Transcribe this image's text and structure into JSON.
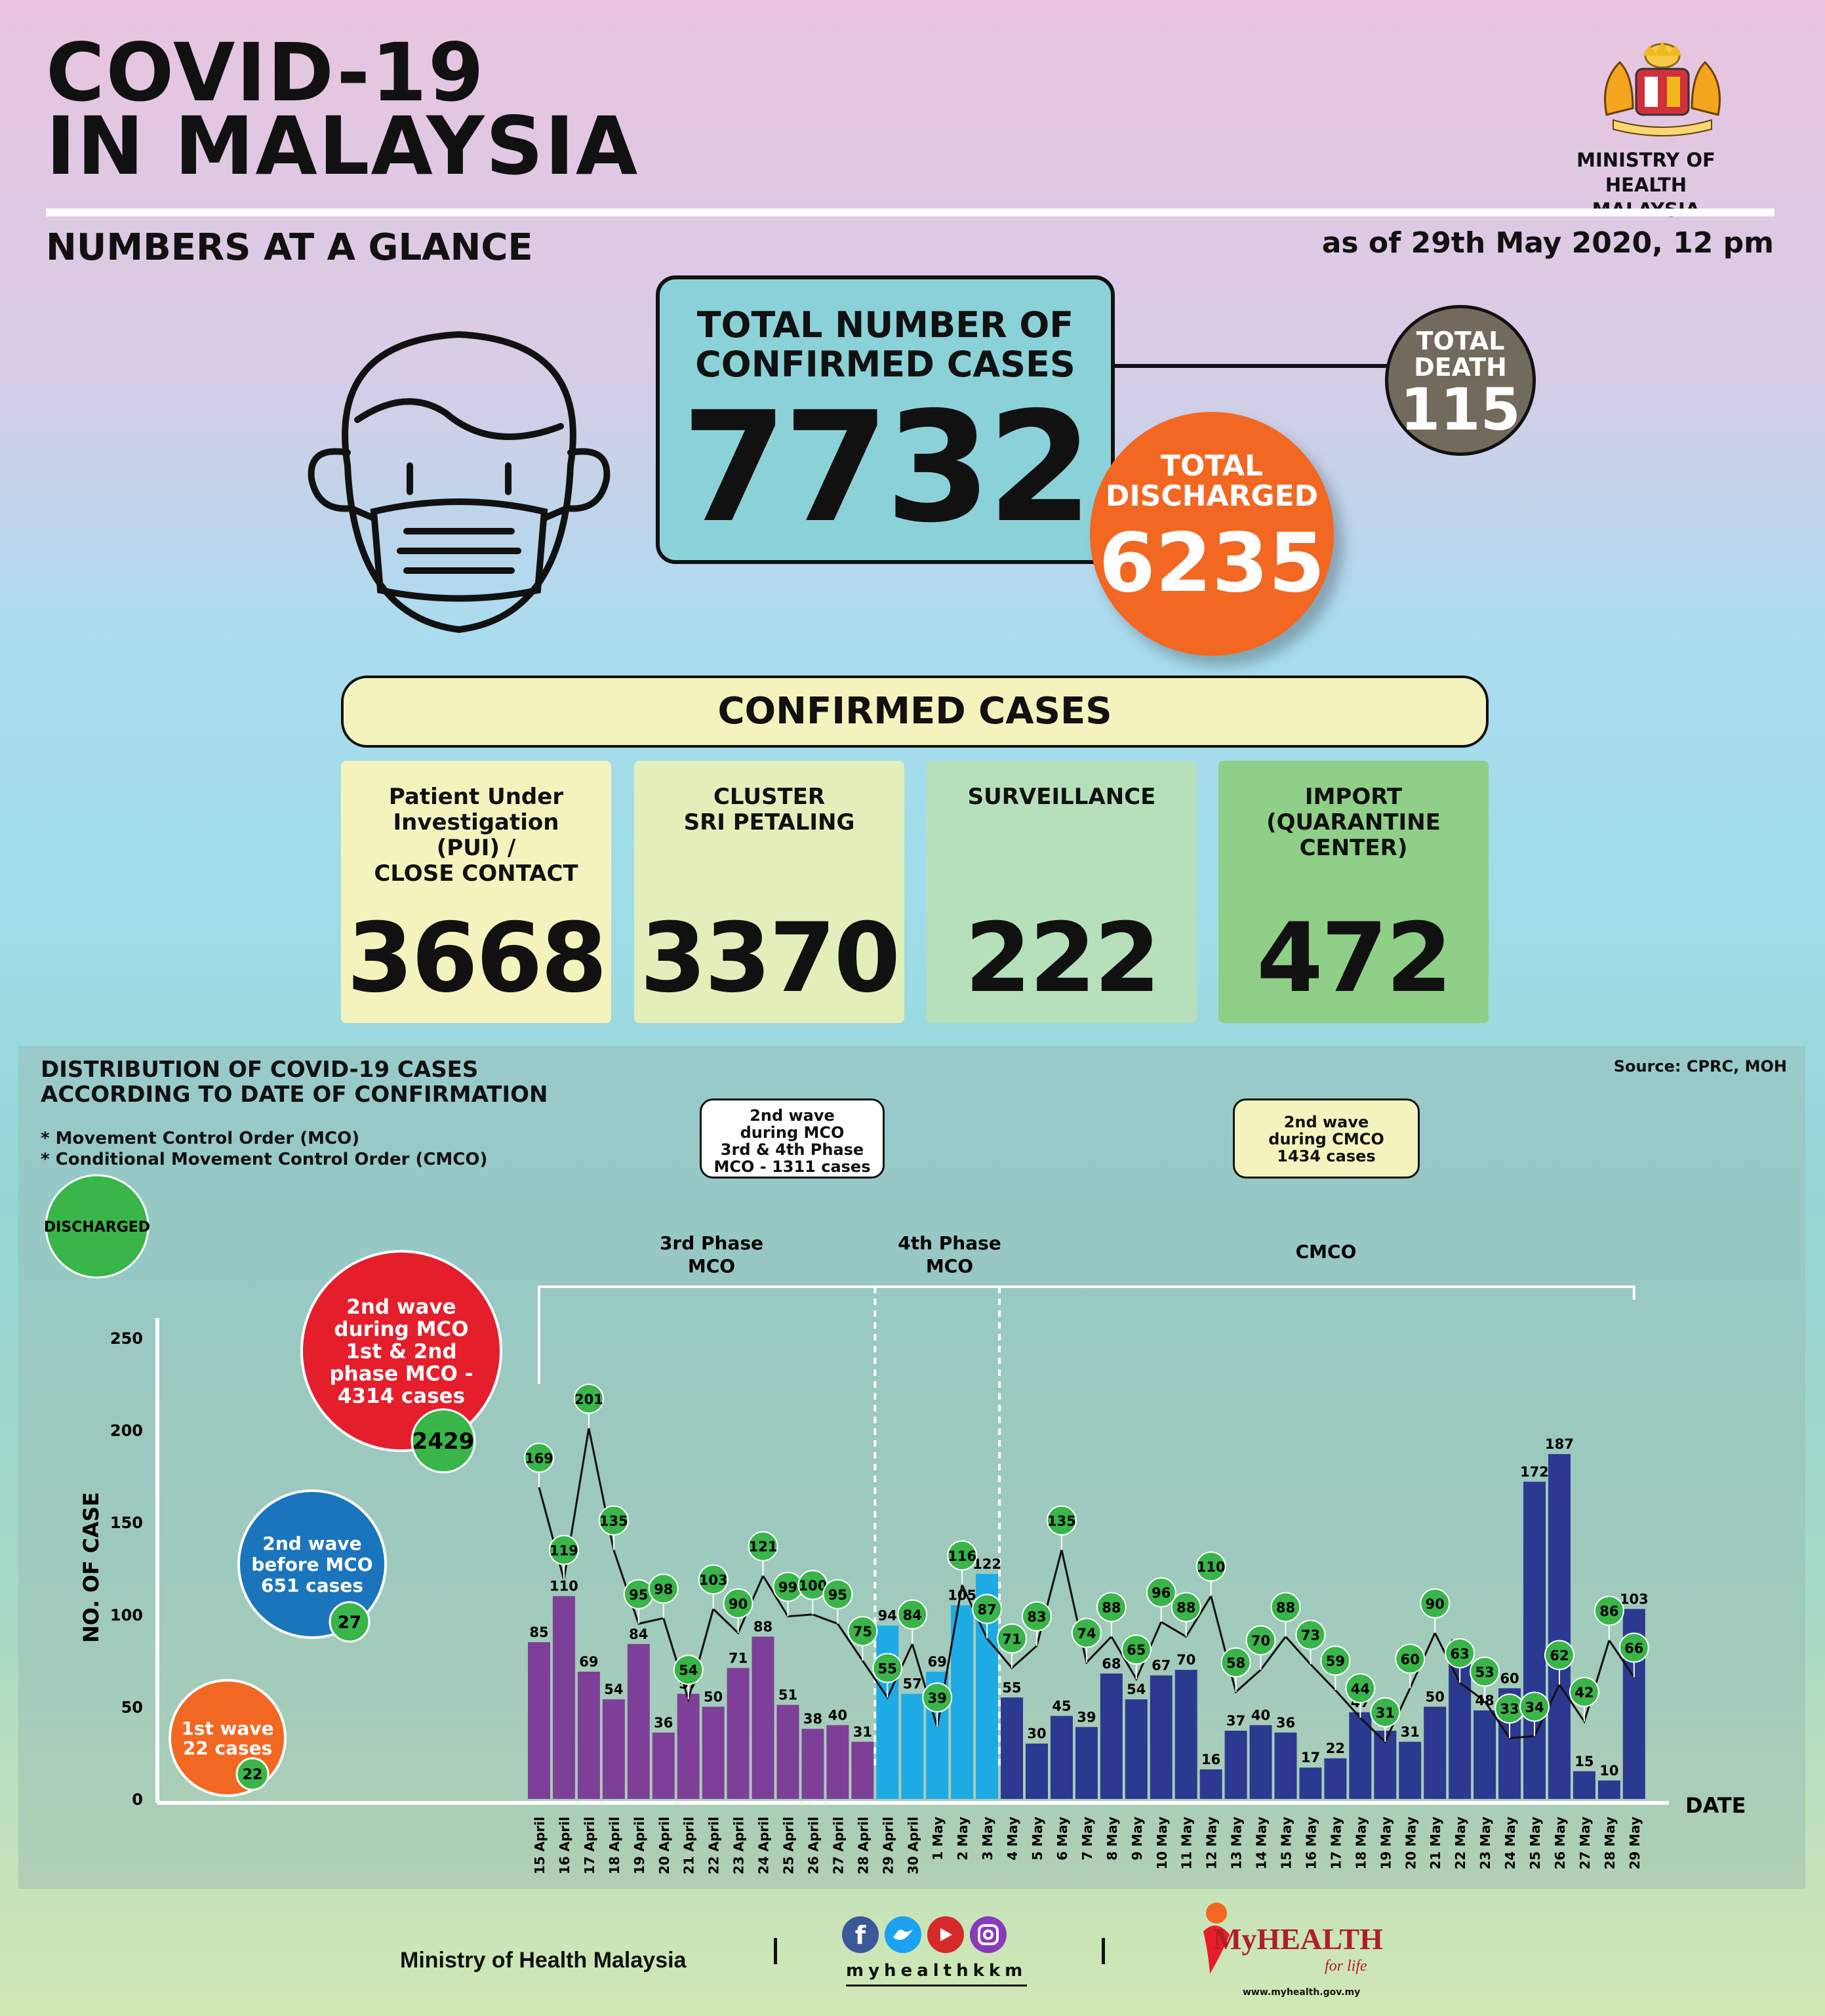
{
  "header": {
    "title_line1": "COVID-19",
    "title_line2": "IN MALAYSIA",
    "subtitle": "NUMBERS AT A GLANCE",
    "as_of": "as of 29th May 2020, 12 pm",
    "ministry_line1": "MINISTRY OF HEALTH",
    "ministry_line2": "MALAYSIA"
  },
  "totals": {
    "confirmed_label_1": "TOTAL NUMBER OF",
    "confirmed_label_2": "CONFIRMED CASES",
    "confirmed": "7732",
    "death_label_1": "TOTAL",
    "death_label_2": "DEATH",
    "death": "115",
    "discharged_label_1": "TOTAL",
    "discharged_label_2": "DISCHARGED",
    "discharged": "6235"
  },
  "confirmed_cases": {
    "header": "CONFIRMED CASES",
    "categories": [
      {
        "label": "Patient Under\nInvestigation\n(PUI) /\nCLOSE CONTACT",
        "value": "3668",
        "color": "#f5f3bd"
      },
      {
        "label": "CLUSTER\nSRI PETALING",
        "value": "3370",
        "color": "#e2efbb"
      },
      {
        "label": "SURVEILLANCE",
        "value": "222",
        "color": "#b6e0b9"
      },
      {
        "label": "IMPORT\n(QUARANTINE\nCENTER)",
        "value": "472",
        "color": "#8fcf87"
      }
    ]
  },
  "chart_section": {
    "title_1": "DISTRIBUTION OF COVID-19 CASES",
    "title_2": "ACCORDING TO DATE OF CONFIRMATION",
    "note_1": "* Movement Control Order (MCO)",
    "note_2": "* Conditional Movement Control Order (CMCO)",
    "source": "Source: CPRC, MOH",
    "discharged_legend": "DISCHARGED",
    "wave_mco34": [
      "2nd wave",
      "during MCO",
      "3rd & 4th Phase",
      "MCO - 1311 cases"
    ],
    "wave_cmco": [
      "2nd wave",
      "during CMCO",
      "1434 cases"
    ],
    "phase3": [
      "3rd Phase",
      "MCO"
    ],
    "phase4": [
      "4th Phase",
      "MCO"
    ],
    "cmco": "CMCO",
    "bubbles": [
      {
        "lines": [
          "2nd wave",
          "during MCO",
          "1st & 2nd",
          "phase MCO -",
          "4314 cases"
        ],
        "discharged": "2429",
        "color": "#e41e2b"
      },
      {
        "lines": [
          "2nd wave",
          "before MCO",
          "651 cases"
        ],
        "discharged": "27",
        "color": "#1b75bc"
      },
      {
        "lines": [
          "1st wave",
          "22 cases"
        ],
        "discharged": "22",
        "color": "#f26722"
      }
    ],
    "colors": {
      "phase3": "#7e3f98",
      "phase4": "#1eabe3",
      "cmco": "#2b3990",
      "discharged": "#39b54a"
    }
  },
  "chart_data": {
    "type": "bar",
    "ylabel": "NO. OF CASE",
    "xlabel": "DATE",
    "ylim": [
      0,
      250
    ],
    "yticks": [
      0,
      50,
      100,
      150,
      200,
      250
    ],
    "categories": [
      "15 April",
      "16 April",
      "17 April",
      "18 April",
      "19 April",
      "20 April",
      "21 April",
      "22 April",
      "23 April",
      "24 April",
      "25 April",
      "26 April",
      "27 April",
      "28 April",
      "29 April",
      "30 April",
      "1 May",
      "2 May",
      "3 May",
      "4 May",
      "5 May",
      "6 May",
      "7 May",
      "8 May",
      "9 May",
      "10 May",
      "11 May",
      "12 May",
      "13 May",
      "14 May",
      "15 May",
      "16 May",
      "17 May",
      "18 May",
      "19 May",
      "20 May",
      "21 May",
      "22 May",
      "23 May",
      "24 May",
      "25 May",
      "26 May",
      "27 May",
      "28 May",
      "29 May"
    ],
    "series": [
      {
        "name": "",
        "values": [
          85,
          110,
          69,
          54,
          84,
          36,
          57,
          50,
          71,
          88,
          51,
          38,
          40,
          31,
          94,
          57,
          69,
          105,
          122,
          55,
          30,
          45,
          39,
          68,
          54,
          67,
          70,
          16,
          37,
          40,
          36,
          17,
          22,
          47,
          37,
          31,
          50,
          78,
          48,
          60,
          172,
          187,
          15,
          10,
          103
        ]
      },
      {
        "name": "DISCHARGED",
        "values": [
          169,
          119,
          201,
          135,
          95,
          98,
          54,
          103,
          90,
          121,
          99,
          100,
          95,
          75,
          55,
          84,
          39,
          116,
          87,
          71,
          83,
          135,
          74,
          88,
          65,
          96,
          88,
          110,
          58,
          70,
          88,
          73,
          59,
          44,
          31,
          60,
          90,
          63,
          53,
          33,
          34,
          62,
          42,
          86,
          66
        ]
      }
    ]
  },
  "footer": {
    "ministry": "Ministry of Health Malaysia",
    "handle": "myhealthkkm",
    "brand": "MyHEALTH",
    "tagline": "for life",
    "url": "www.myhealth.gov.my"
  }
}
